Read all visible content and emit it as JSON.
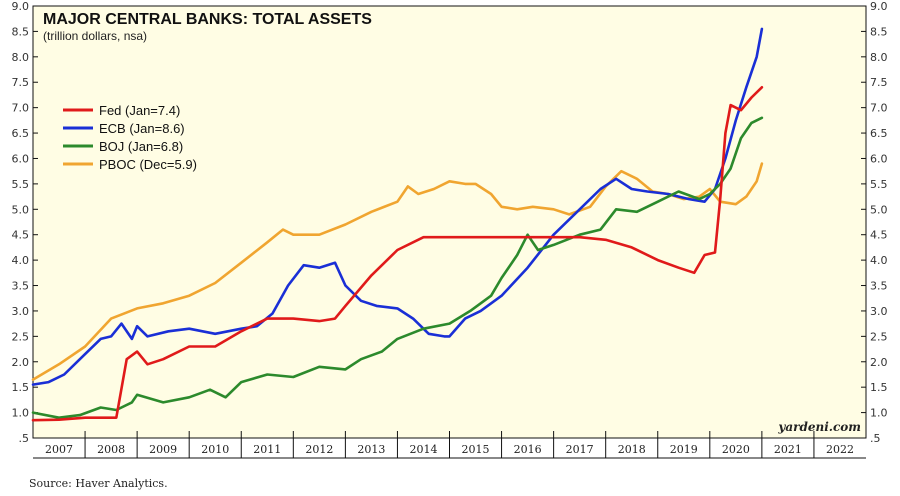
{
  "chart_data": {
    "type": "line",
    "title": "MAJOR CENTRAL BANKS: TOTAL ASSETS",
    "subtitle": "(trillion dollars, nsa)",
    "xlabel": "",
    "ylabel": "",
    "xlim": [
      2007.0,
      2023.0
    ],
    "ylim": [
      0.5,
      9.0
    ],
    "y_ticks": [
      0.5,
      1.0,
      1.5,
      2.0,
      2.5,
      3.0,
      3.5,
      4.0,
      4.5,
      5.0,
      5.5,
      6.0,
      6.5,
      7.0,
      7.5,
      8.0,
      8.5,
      9.0
    ],
    "y_tick_labels": [
      ".5",
      "1.0",
      "1.5",
      "2.0",
      "2.5",
      "3.0",
      "3.5",
      "4.0",
      "4.5",
      "5.0",
      "5.5",
      "6.0",
      "6.5",
      "7.0",
      "7.5",
      "8.0",
      "8.5",
      "9.0"
    ],
    "x_ticks": [
      {
        "label": "2007",
        "value": 2007.5
      },
      {
        "label": "2008",
        "value": 2008.5
      },
      {
        "label": "2009",
        "value": 2009.5
      },
      {
        "label": "2010",
        "value": 2010.5
      },
      {
        "label": "2011",
        "value": 2011.5
      },
      {
        "label": "2012",
        "value": 2012.5
      },
      {
        "label": "2013",
        "value": 2013.5
      },
      {
        "label": "2014",
        "value": 2014.5
      },
      {
        "label": "2015",
        "value": 2015.5
      },
      {
        "label": "2016",
        "value": 2016.5
      },
      {
        "label": "2017",
        "value": 2017.5
      },
      {
        "label": "2018",
        "value": 2018.5
      },
      {
        "label": "2019",
        "value": 2019.5
      },
      {
        "label": "2020",
        "value": 2020.5
      },
      {
        "label": "2021",
        "value": 2021.5
      },
      {
        "label": "2022",
        "value": 2022.5
      }
    ],
    "grid": false,
    "legend_position": "top-left",
    "annotation": "yardeni.com",
    "source": "Source: Haver Analytics.",
    "series": [
      {
        "name": "PBOC",
        "label": "PBOC (Dec=5.9)",
        "color": "#f0a530",
        "points": [
          [
            2007.0,
            1.65
          ],
          [
            2007.5,
            1.95
          ],
          [
            2008.0,
            2.3
          ],
          [
            2008.5,
            2.85
          ],
          [
            2009.0,
            3.05
          ],
          [
            2009.5,
            3.15
          ],
          [
            2010.0,
            3.3
          ],
          [
            2010.5,
            3.55
          ],
          [
            2011.0,
            3.95
          ],
          [
            2011.5,
            4.35
          ],
          [
            2011.8,
            4.6
          ],
          [
            2012.0,
            4.5
          ],
          [
            2012.5,
            4.5
          ],
          [
            2013.0,
            4.7
          ],
          [
            2013.5,
            4.95
          ],
          [
            2014.0,
            5.15
          ],
          [
            2014.2,
            5.45
          ],
          [
            2014.4,
            5.3
          ],
          [
            2014.7,
            5.4
          ],
          [
            2015.0,
            5.55
          ],
          [
            2015.3,
            5.5
          ],
          [
            2015.5,
            5.5
          ],
          [
            2015.8,
            5.3
          ],
          [
            2016.0,
            5.05
          ],
          [
            2016.3,
            5.0
          ],
          [
            2016.6,
            5.05
          ],
          [
            2017.0,
            5.0
          ],
          [
            2017.3,
            4.9
          ],
          [
            2017.7,
            5.05
          ],
          [
            2018.0,
            5.45
          ],
          [
            2018.3,
            5.75
          ],
          [
            2018.6,
            5.6
          ],
          [
            2018.9,
            5.35
          ],
          [
            2019.2,
            5.3
          ],
          [
            2019.5,
            5.2
          ],
          [
            2019.8,
            5.25
          ],
          [
            2020.0,
            5.4
          ],
          [
            2020.2,
            5.15
          ],
          [
            2020.5,
            5.1
          ],
          [
            2020.7,
            5.25
          ],
          [
            2020.9,
            5.55
          ],
          [
            2021.0,
            5.9
          ]
        ]
      },
      {
        "name": "ECB",
        "label": "ECB (Jan=8.6)",
        "color": "#1a2fd6",
        "points": [
          [
            2007.0,
            1.55
          ],
          [
            2007.3,
            1.6
          ],
          [
            2007.6,
            1.75
          ],
          [
            2008.0,
            2.15
          ],
          [
            2008.3,
            2.45
          ],
          [
            2008.5,
            2.5
          ],
          [
            2008.7,
            2.75
          ],
          [
            2008.9,
            2.45
          ],
          [
            2009.0,
            2.7
          ],
          [
            2009.2,
            2.5
          ],
          [
            2009.6,
            2.6
          ],
          [
            2010.0,
            2.65
          ],
          [
            2010.5,
            2.55
          ],
          [
            2011.0,
            2.65
          ],
          [
            2011.3,
            2.7
          ],
          [
            2011.6,
            2.95
          ],
          [
            2011.9,
            3.5
          ],
          [
            2012.2,
            3.9
          ],
          [
            2012.5,
            3.85
          ],
          [
            2012.8,
            3.95
          ],
          [
            2013.0,
            3.5
          ],
          [
            2013.3,
            3.2
          ],
          [
            2013.6,
            3.1
          ],
          [
            2014.0,
            3.05
          ],
          [
            2014.3,
            2.85
          ],
          [
            2014.6,
            2.55
          ],
          [
            2014.9,
            2.5
          ],
          [
            2015.0,
            2.5
          ],
          [
            2015.3,
            2.85
          ],
          [
            2015.6,
            3.0
          ],
          [
            2016.0,
            3.3
          ],
          [
            2016.5,
            3.85
          ],
          [
            2017.0,
            4.5
          ],
          [
            2017.5,
            5.0
          ],
          [
            2017.9,
            5.4
          ],
          [
            2018.2,
            5.6
          ],
          [
            2018.5,
            5.4
          ],
          [
            2018.8,
            5.35
          ],
          [
            2019.2,
            5.3
          ],
          [
            2019.6,
            5.2
          ],
          [
            2019.9,
            5.15
          ],
          [
            2020.1,
            5.4
          ],
          [
            2020.3,
            6.0
          ],
          [
            2020.5,
            6.75
          ],
          [
            2020.7,
            7.4
          ],
          [
            2020.9,
            8.0
          ],
          [
            2021.0,
            8.55
          ]
        ]
      },
      {
        "name": "BOJ",
        "label": "BOJ (Jan=6.8)",
        "color": "#2c8a2c",
        "points": [
          [
            2007.0,
            1.0
          ],
          [
            2007.5,
            0.9
          ],
          [
            2007.9,
            0.95
          ],
          [
            2008.3,
            1.1
          ],
          [
            2008.6,
            1.05
          ],
          [
            2008.9,
            1.2
          ],
          [
            2009.0,
            1.35
          ],
          [
            2009.5,
            1.2
          ],
          [
            2010.0,
            1.3
          ],
          [
            2010.4,
            1.45
          ],
          [
            2010.7,
            1.3
          ],
          [
            2011.0,
            1.6
          ],
          [
            2011.5,
            1.75
          ],
          [
            2012.0,
            1.7
          ],
          [
            2012.5,
            1.9
          ],
          [
            2013.0,
            1.85
          ],
          [
            2013.3,
            2.05
          ],
          [
            2013.7,
            2.2
          ],
          [
            2014.0,
            2.45
          ],
          [
            2014.5,
            2.65
          ],
          [
            2015.0,
            2.75
          ],
          [
            2015.4,
            3.0
          ],
          [
            2015.8,
            3.3
          ],
          [
            2016.0,
            3.65
          ],
          [
            2016.3,
            4.1
          ],
          [
            2016.5,
            4.5
          ],
          [
            2016.7,
            4.2
          ],
          [
            2017.0,
            4.3
          ],
          [
            2017.5,
            4.5
          ],
          [
            2017.9,
            4.6
          ],
          [
            2018.2,
            5.0
          ],
          [
            2018.6,
            4.95
          ],
          [
            2019.0,
            5.15
          ],
          [
            2019.4,
            5.35
          ],
          [
            2019.8,
            5.2
          ],
          [
            2020.0,
            5.3
          ],
          [
            2020.2,
            5.5
          ],
          [
            2020.4,
            5.8
          ],
          [
            2020.6,
            6.4
          ],
          [
            2020.8,
            6.7
          ],
          [
            2021.0,
            6.8
          ]
        ]
      },
      {
        "name": "Fed",
        "label": "Fed (Jan=7.4)",
        "color": "#e01a1a",
        "points": [
          [
            2007.0,
            0.85
          ],
          [
            2007.5,
            0.86
          ],
          [
            2008.0,
            0.9
          ],
          [
            2008.6,
            0.9
          ],
          [
            2008.8,
            2.05
          ],
          [
            2009.0,
            2.2
          ],
          [
            2009.2,
            1.95
          ],
          [
            2009.5,
            2.05
          ],
          [
            2010.0,
            2.3
          ],
          [
            2010.5,
            2.3
          ],
          [
            2011.0,
            2.6
          ],
          [
            2011.5,
            2.85
          ],
          [
            2012.0,
            2.85
          ],
          [
            2012.5,
            2.8
          ],
          [
            2012.8,
            2.85
          ],
          [
            2013.0,
            3.1
          ],
          [
            2013.5,
            3.7
          ],
          [
            2014.0,
            4.2
          ],
          [
            2014.5,
            4.45
          ],
          [
            2015.0,
            4.45
          ],
          [
            2015.5,
            4.45
          ],
          [
            2016.0,
            4.45
          ],
          [
            2016.5,
            4.45
          ],
          [
            2017.0,
            4.45
          ],
          [
            2017.5,
            4.45
          ],
          [
            2018.0,
            4.4
          ],
          [
            2018.5,
            4.25
          ],
          [
            2019.0,
            4.0
          ],
          [
            2019.4,
            3.85
          ],
          [
            2019.7,
            3.75
          ],
          [
            2019.9,
            4.1
          ],
          [
            2020.1,
            4.15
          ],
          [
            2020.2,
            5.2
          ],
          [
            2020.3,
            6.5
          ],
          [
            2020.4,
            7.05
          ],
          [
            2020.6,
            6.95
          ],
          [
            2020.8,
            7.2
          ],
          [
            2021.0,
            7.4
          ]
        ]
      }
    ]
  }
}
